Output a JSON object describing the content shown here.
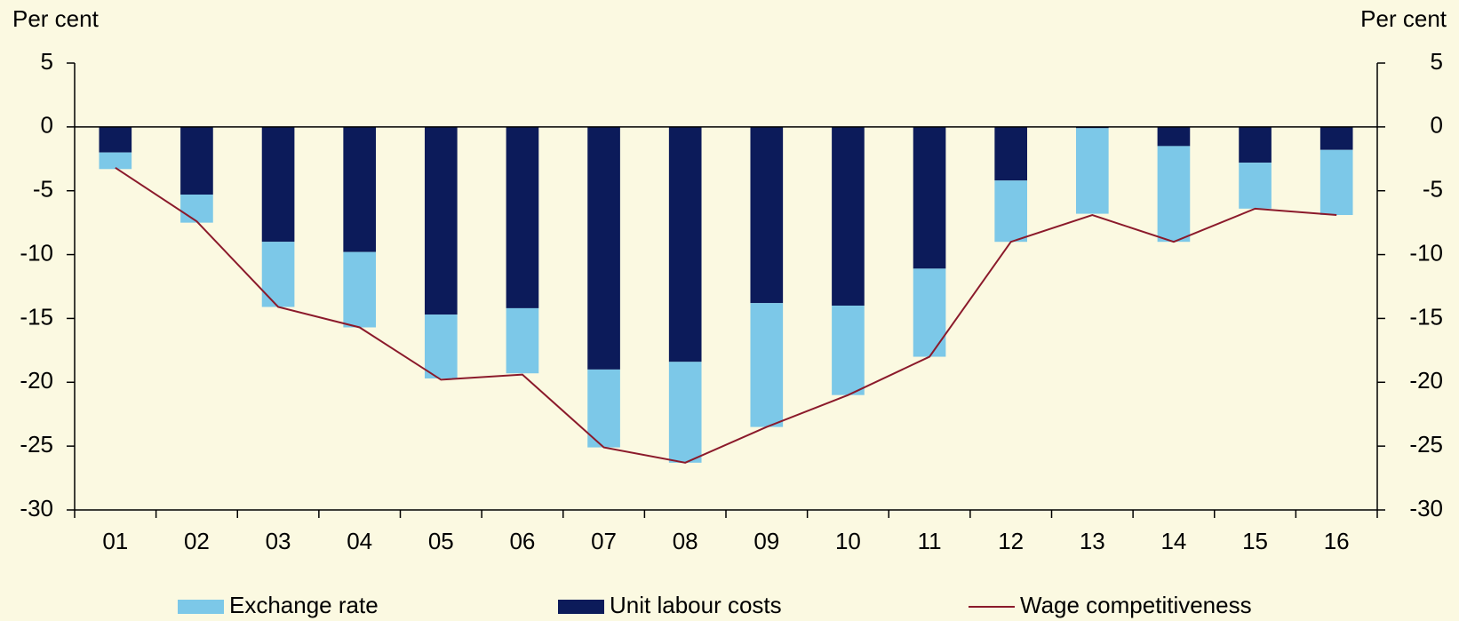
{
  "chart_data": {
    "type": "bar",
    "y_label": "Per cent",
    "y2_label": "Per cent",
    "categories": [
      "01",
      "02",
      "03",
      "04",
      "05",
      "06",
      "07",
      "08",
      "09",
      "10",
      "11",
      "12",
      "13",
      "14",
      "15",
      "16"
    ],
    "series": [
      {
        "name": "Exchange rate",
        "color": "#7cc8e8",
        "values": [
          -1.3,
          -2.2,
          -5.1,
          -5.9,
          -5.0,
          -5.1,
          -6.1,
          -7.9,
          -9.7,
          -7.0,
          -6.9,
          -4.8,
          -6.7,
          -7.5,
          -3.6,
          -5.1
        ]
      },
      {
        "name": "Unit labour costs",
        "color": "#0c1b5a",
        "values": [
          -2.0,
          -5.3,
          -9.0,
          -9.8,
          -14.7,
          -14.2,
          -19.0,
          -18.4,
          -13.8,
          -14.0,
          -11.1,
          -4.2,
          -0.1,
          -1.5,
          -2.8,
          -1.8
        ]
      },
      {
        "name": "Wage competitiveness",
        "type": "line",
        "color": "#8b1a2b",
        "values": [
          -3.2,
          -7.4,
          -14.1,
          -15.7,
          -19.8,
          -19.4,
          -25.1,
          -26.3,
          -23.5,
          -21.0,
          -18.0,
          -9.0,
          -6.9,
          -9.0,
          -6.4,
          -6.9
        ]
      }
    ],
    "ylim": [
      -30,
      5
    ],
    "yticks": [
      5,
      0,
      -5,
      -10,
      -15,
      -20,
      -25,
      -30
    ],
    "y2lim": [
      -30,
      5
    ],
    "y2ticks": [
      5,
      0,
      -5,
      -10,
      -15,
      -20,
      -25,
      -30
    ]
  }
}
